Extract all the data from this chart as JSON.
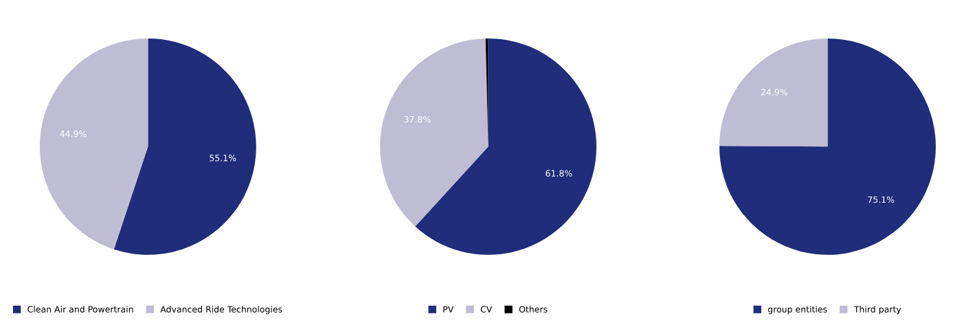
{
  "chart_data": [
    {
      "type": "pie",
      "categories": [
        "Clean Air and Powertrain",
        "Advanced Ride Technologies"
      ],
      "values": [
        55.1,
        44.9
      ],
      "colors": [
        "#1f2d7b",
        "#bebdd4"
      ],
      "value_labels": [
        "55.1%",
        "44.9%"
      ],
      "legend": "bottom"
    },
    {
      "type": "pie",
      "categories": [
        "PV",
        "CV",
        "Others"
      ],
      "values": [
        61.8,
        37.8,
        0.4
      ],
      "colors": [
        "#1f2d7b",
        "#bebdd4",
        "#000000"
      ],
      "value_labels": [
        "61.8%",
        "37.8%",
        null
      ],
      "legend": "bottom"
    },
    {
      "type": "pie",
      "categories": [
        "group entities",
        "Third party"
      ],
      "values": [
        75.1,
        24.9
      ],
      "colors": [
        "#1f2d7b",
        "#bebdd4"
      ],
      "value_labels": [
        "75.1%",
        "24.9%"
      ],
      "legend": "bottom"
    }
  ]
}
